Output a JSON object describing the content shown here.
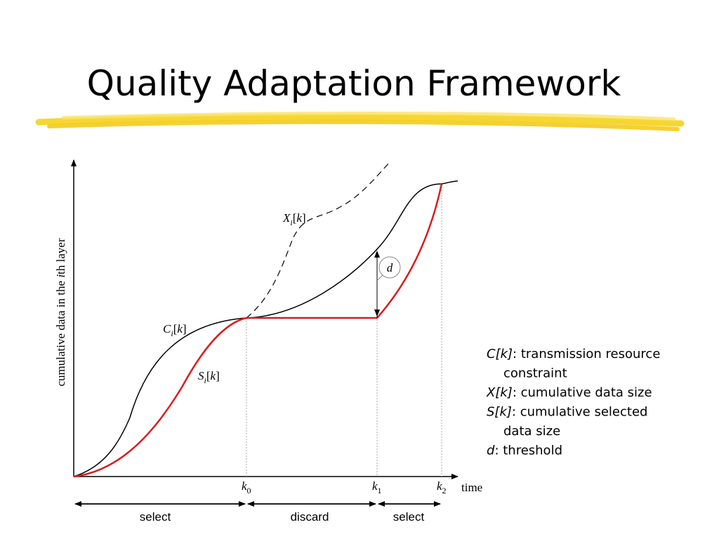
{
  "title": "Quality Adaptation Framework",
  "y_axis_label": [
    "cumulative data in the ",
    "i",
    "th layer"
  ],
  "x_axis_label": "time",
  "curve_labels": {
    "x": [
      "X",
      "i",
      "[",
      "k",
      "]"
    ],
    "c": [
      "C",
      "i",
      "[",
      "k",
      "]"
    ],
    "s": [
      "S",
      "i",
      "[",
      "k",
      "]"
    ],
    "d": "d"
  },
  "ticks": [
    [
      "k",
      "0"
    ],
    [
      "k",
      "1"
    ],
    [
      "k",
      "2"
    ]
  ],
  "phases": [
    "select",
    "discard",
    "select"
  ],
  "legend": [
    {
      "term": "C[k]",
      "lines": [
        ": transmission resource",
        "constraint"
      ]
    },
    {
      "term": "X[k]",
      "lines": [
        ": cumulative data size"
      ]
    },
    {
      "term": "S[k]",
      "lines": [
        ": cumulative selected",
        "data size"
      ]
    },
    {
      "term": "d",
      "lines": [
        ": threshold"
      ]
    }
  ]
}
